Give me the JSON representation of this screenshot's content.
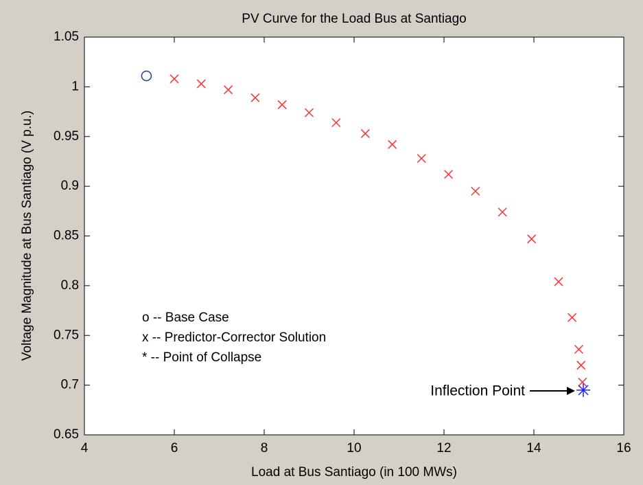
{
  "chart_data": {
    "type": "scatter",
    "title": "PV Curve for the Load Bus at Santiago",
    "x_label": "Load at Bus Santiago (in 100 MWs)",
    "y_label": "Voltage Magnitude at Bus Santiago (V p.u.)",
    "notes": [
      "o -- Base Case",
      "x -- Predictor-Corrector Solution",
      "* -- Point of Collapse"
    ],
    "annotation": "Inflection Point",
    "series": [
      {
        "marker": "circle",
        "color": "#1c3f94",
        "x": [
          5.38
        ],
        "values": [
          1.011
        ]
      },
      {
        "marker": "cross",
        "color": "#ff3030",
        "x": [
          6.0,
          6.6,
          7.2,
          7.8,
          8.4,
          9.0,
          9.6,
          10.25,
          10.85,
          11.5,
          12.1,
          12.7,
          13.3,
          13.95,
          14.55,
          14.85,
          15.0,
          15.05,
          15.08
        ],
        "values": [
          1.008,
          1.003,
          0.997,
          0.989,
          0.982,
          0.974,
          0.964,
          0.953,
          0.942,
          0.928,
          0.912,
          0.895,
          0.874,
          0.847,
          0.804,
          0.768,
          0.736,
          0.72,
          0.703
        ]
      },
      {
        "marker": "star",
        "color": "#2020ff",
        "x": [
          15.1
        ],
        "values": [
          0.695
        ]
      }
    ],
    "xlim": [
      4,
      16
    ],
    "xticks": [
      4,
      6,
      8,
      10,
      12,
      14,
      16
    ],
    "ylim": [
      0.65,
      1.05
    ],
    "yticks": [
      0.65,
      0.7,
      0.75,
      0.8,
      0.85,
      0.9,
      0.95,
      1,
      1.05
    ],
    "grid": false
  }
}
